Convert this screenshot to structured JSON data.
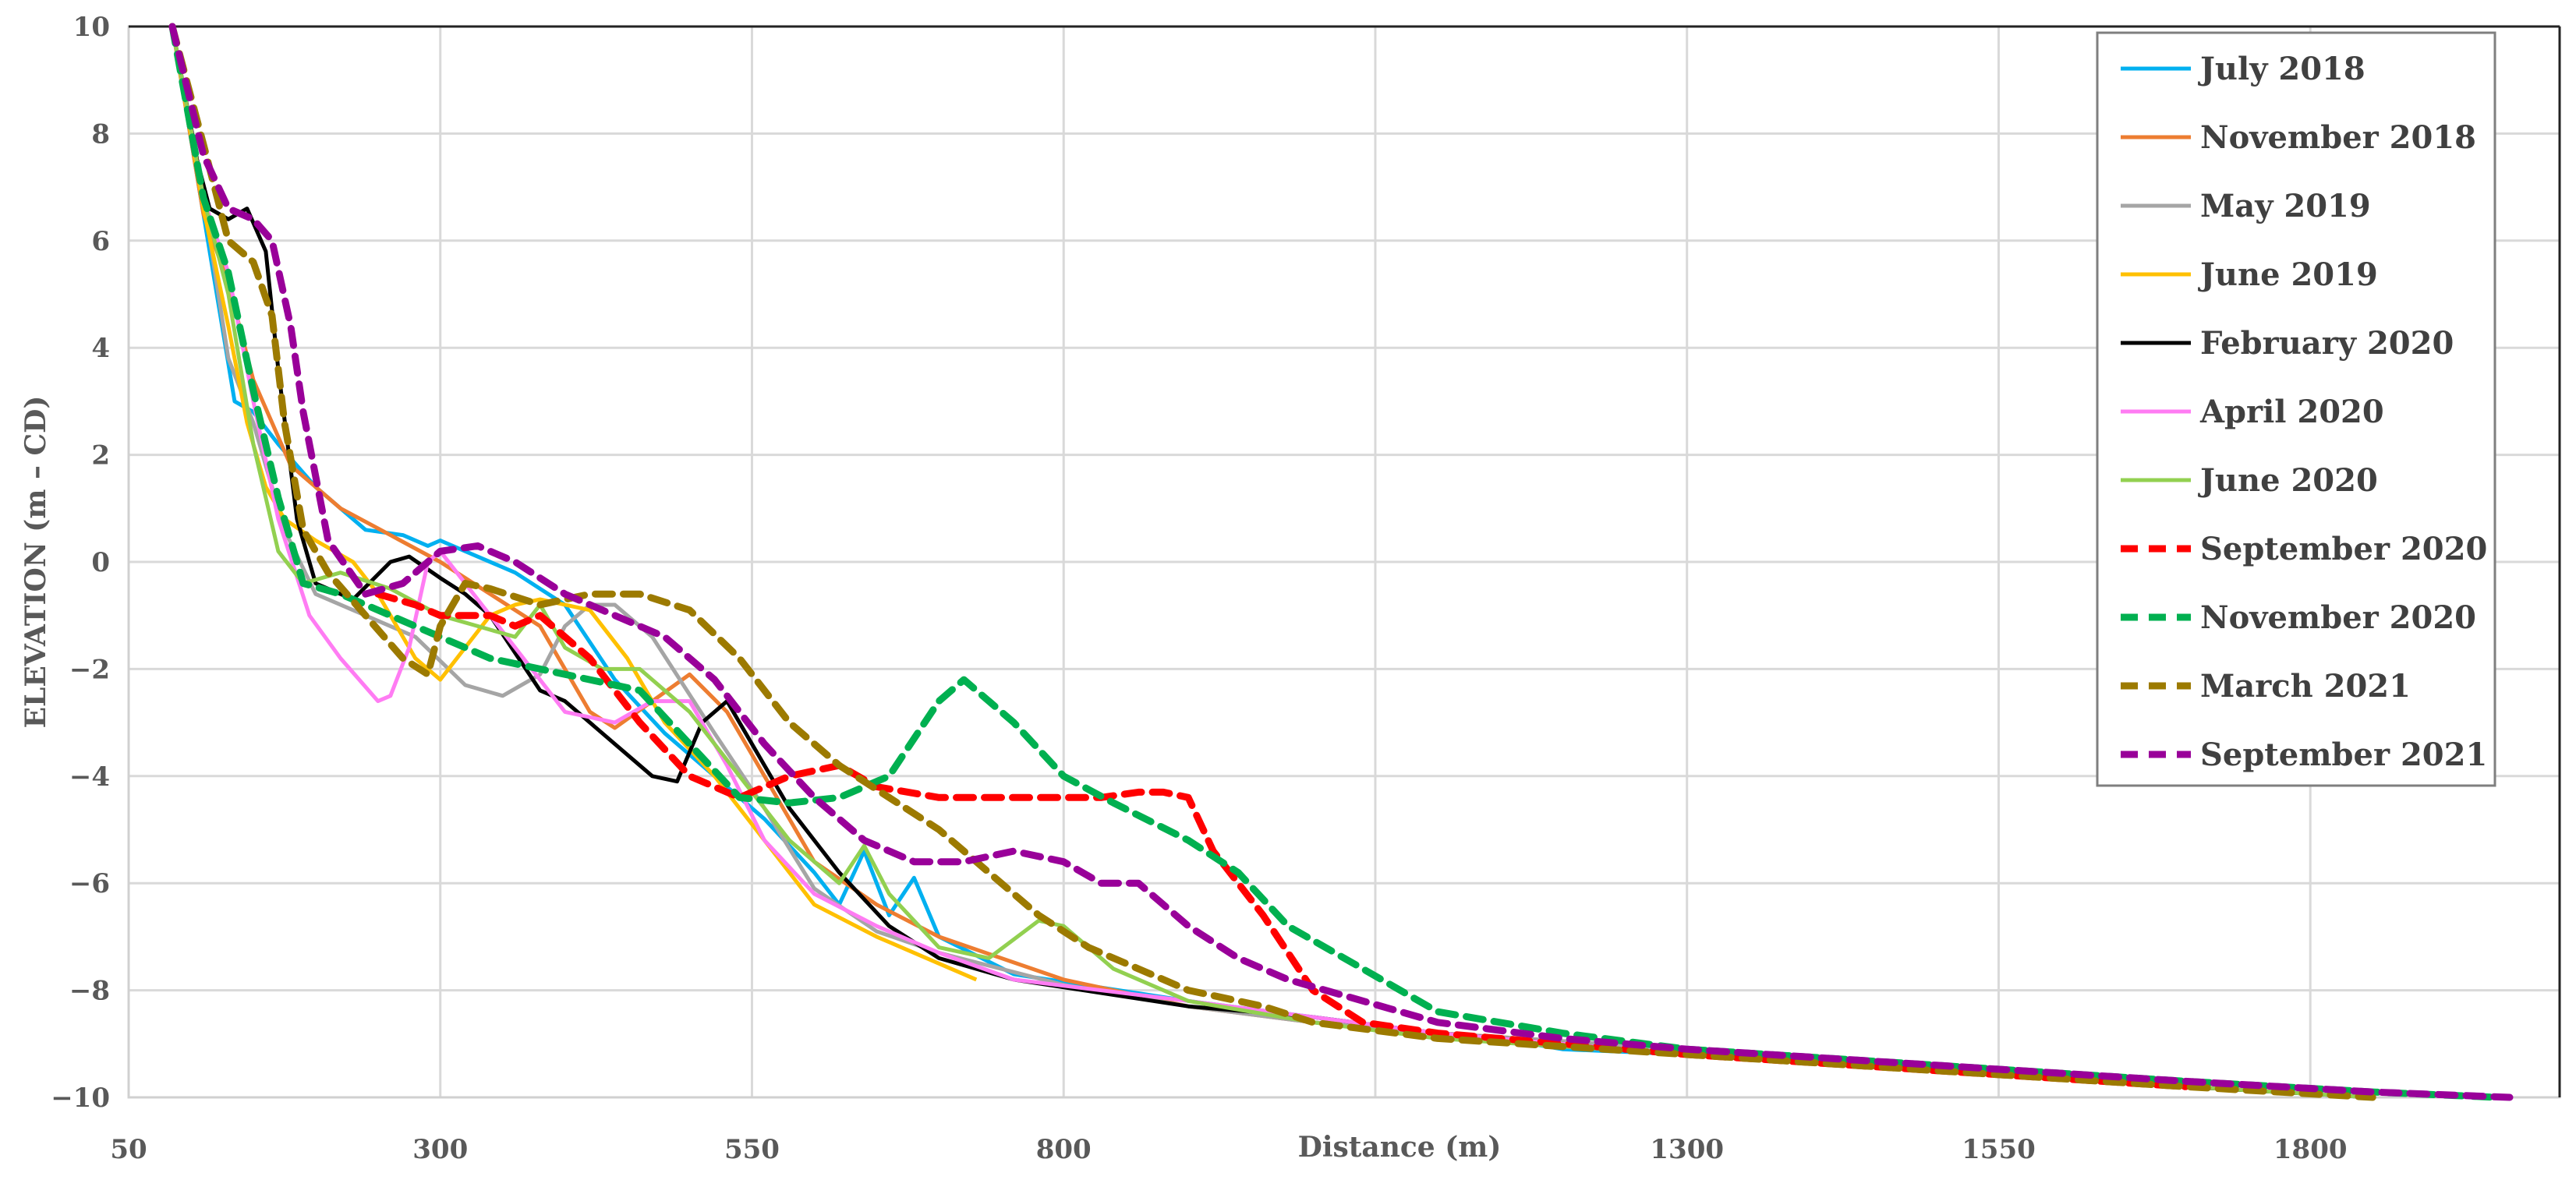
{
  "chart_data": {
    "type": "line",
    "title": "",
    "xlabel": "Distance (m)",
    "ylabel": "ELEVATION (m – CD)",
    "xlim": [
      50,
      2000
    ],
    "ylim": [
      -10,
      10
    ],
    "x_ticks": [
      50,
      300,
      550,
      800,
      1050,
      1300,
      1550,
      1800
    ],
    "x_tick_labels": [
      "50",
      "300",
      "550",
      "800",
      "",
      "1300",
      "1550",
      "1800"
    ],
    "y_ticks": [
      10,
      8,
      6,
      4,
      2,
      0,
      -2,
      -4,
      -6,
      -8,
      -10
    ],
    "y_tick_labels": [
      "10",
      "8",
      "6",
      "4",
      "2",
      "0",
      "−2",
      "−4",
      "−6",
      "−8",
      "−10"
    ],
    "grid": true,
    "legend_position": "upper-right",
    "series": [
      {
        "name": "July 2018",
        "color": "#00B0F0",
        "dash": false,
        "x": [
          85,
          110,
          135,
          150,
          170,
          200,
          240,
          270,
          290,
          300,
          320,
          360,
          400,
          440,
          480,
          520,
          560,
          600,
          620,
          640,
          660,
          680,
          700,
          760,
          900,
          1000,
          1100,
          1150,
          1200,
          1300,
          1500,
          1700,
          1850
        ],
        "y": [
          10,
          6.5,
          3.0,
          2.8,
          2.2,
          1.4,
          0.6,
          0.5,
          0.3,
          0.4,
          0.2,
          -0.2,
          -0.8,
          -2.2,
          -3.2,
          -4.0,
          -4.8,
          -5.8,
          -6.4,
          -5.4,
          -6.6,
          -5.9,
          -7.0,
          -7.7,
          -8.2,
          -8.5,
          -8.8,
          -8.9,
          -9.1,
          -9.2,
          -9.5,
          -9.8,
          -10
        ]
      },
      {
        "name": "November 2018",
        "color": "#ED7D31",
        "dash": false,
        "x": [
          85,
          110,
          130,
          150,
          180,
          220,
          260,
          300,
          340,
          380,
          400,
          420,
          440,
          470,
          500,
          530,
          560,
          600,
          650,
          700,
          800,
          900,
          1000,
          1100,
          1300,
          1500,
          1700,
          1850
        ],
        "y": [
          10,
          6.5,
          5.2,
          3.4,
          1.8,
          1.0,
          0.5,
          0.0,
          -0.6,
          -1.2,
          -2.0,
          -2.8,
          -3.1,
          -2.6,
          -2.1,
          -2.8,
          -4.0,
          -5.6,
          -6.4,
          -7.0,
          -7.8,
          -8.3,
          -8.6,
          -8.8,
          -9.1,
          -9.5,
          -9.8,
          -10
        ]
      },
      {
        "name": "May 2019",
        "color": "#A5A5A5",
        "dash": false,
        "x": [
          85,
          110,
          130,
          150,
          175,
          200,
          240,
          280,
          320,
          350,
          380,
          400,
          420,
          440,
          470,
          520,
          560,
          600,
          650,
          700,
          800,
          900,
          1000,
          1100,
          1300,
          1500,
          1700,
          1850
        ],
        "y": [
          10,
          6.8,
          3.8,
          2.6,
          0.6,
          -0.6,
          -1.0,
          -1.4,
          -2.3,
          -2.5,
          -2.1,
          -1.2,
          -0.8,
          -0.8,
          -1.4,
          -3.2,
          -4.6,
          -6.1,
          -6.9,
          -7.3,
          -7.9,
          -8.3,
          -8.6,
          -8.8,
          -9.1,
          -9.5,
          -9.8,
          -10
        ]
      },
      {
        "name": "June 2019",
        "color": "#FFC000",
        "dash": false,
        "x": [
          85,
          110,
          130,
          145,
          160,
          175,
          200,
          230,
          250,
          280,
          300,
          320,
          340,
          360,
          380,
          420,
          450,
          480,
          520,
          560,
          600,
          650,
          700,
          730
        ],
        "y": [
          10,
          6.6,
          4.4,
          2.6,
          1.4,
          0.8,
          0.4,
          0.0,
          -0.6,
          -1.8,
          -2.2,
          -1.6,
          -1.0,
          -0.8,
          -0.7,
          -0.9,
          -1.8,
          -3.0,
          -4.0,
          -5.2,
          -6.4,
          -7.0,
          -7.5,
          -7.8
        ]
      },
      {
        "name": "February 2020",
        "color": "#000000",
        "dash": false,
        "x": [
          85,
          105,
          115,
          130,
          145,
          160,
          170,
          185,
          200,
          230,
          260,
          275,
          300,
          320,
          340,
          380,
          400,
          440,
          470,
          490,
          510,
          530,
          550,
          580,
          620,
          660,
          700,
          760,
          900,
          1000,
          1100,
          1300,
          1500,
          1700,
          1850
        ],
        "y": [
          10,
          7.5,
          6.6,
          6.4,
          6.6,
          5.8,
          3.6,
          0.8,
          -0.4,
          -0.7,
          0.0,
          0.1,
          -0.3,
          -0.6,
          -1.0,
          -2.4,
          -2.6,
          -3.4,
          -4.0,
          -4.1,
          -3.0,
          -2.6,
          -3.4,
          -4.6,
          -5.8,
          -6.8,
          -7.4,
          -7.8,
          -8.3,
          -8.5,
          -8.8,
          -9.2,
          -9.5,
          -9.8,
          -10
        ]
      },
      {
        "name": "April 2020",
        "color": "#FF7CF3",
        "dash": false,
        "x": [
          85,
          110,
          130,
          150,
          170,
          195,
          220,
          250,
          260,
          275,
          290,
          300,
          320,
          360,
          400,
          440,
          470,
          500,
          530,
          560,
          600,
          650,
          700,
          760,
          900,
          1000,
          1100,
          1300,
          1500,
          1700,
          1850,
          1950
        ],
        "y": [
          10,
          6.8,
          5.4,
          3.0,
          0.8,
          -1.0,
          -1.8,
          -2.6,
          -2.5,
          -1.6,
          0.0,
          0.2,
          -0.4,
          -1.6,
          -2.8,
          -3.0,
          -2.6,
          -2.6,
          -3.8,
          -5.2,
          -6.2,
          -6.8,
          -7.3,
          -7.8,
          -8.2,
          -8.5,
          -8.8,
          -9.2,
          -9.5,
          -9.8,
          -9.9,
          -10
        ]
      },
      {
        "name": "June 2020",
        "color": "#92D050",
        "dash": false,
        "x": [
          85,
          110,
          130,
          150,
          170,
          190,
          220,
          260,
          300,
          330,
          360,
          380,
          400,
          430,
          460,
          500,
          540,
          580,
          620,
          640,
          660,
          700,
          740,
          780,
          800,
          840,
          900,
          1000,
          1100,
          1300,
          1500,
          1700,
          1850
        ],
        "y": [
          10,
          6.8,
          5.0,
          2.2,
          0.2,
          -0.4,
          -0.2,
          -0.5,
          -1.0,
          -1.2,
          -1.4,
          -0.8,
          -1.6,
          -2.0,
          -2.0,
          -2.8,
          -4.0,
          -5.2,
          -6.0,
          -5.3,
          -6.2,
          -7.2,
          -7.4,
          -6.7,
          -6.8,
          -7.6,
          -8.2,
          -8.6,
          -8.9,
          -9.2,
          -9.5,
          -9.8,
          -10
        ]
      },
      {
        "name": "September 2020",
        "color": "#FF0000",
        "dash": true,
        "x": [
          250,
          280,
          300,
          320,
          340,
          360,
          380,
          400,
          420,
          440,
          460,
          500,
          540,
          580,
          620,
          650,
          700,
          760,
          800,
          830,
          860,
          880,
          900,
          920,
          960,
          1000,
          1040,
          1100,
          1300,
          1500,
          1700
        ],
        "y": [
          -0.6,
          -0.8,
          -1.0,
          -1.0,
          -1.0,
          -1.2,
          -1.0,
          -1.4,
          -1.8,
          -2.4,
          -3.0,
          -4.0,
          -4.4,
          -4.0,
          -3.8,
          -4.2,
          -4.4,
          -4.4,
          -4.4,
          -4.4,
          -4.3,
          -4.3,
          -4.4,
          -5.4,
          -6.6,
          -8.0,
          -8.6,
          -8.8,
          -9.2,
          -9.5,
          -9.8
        ]
      },
      {
        "name": "November 2020",
        "color": "#00B050",
        "dash": true,
        "x": [
          85,
          110,
          130,
          150,
          170,
          190,
          220,
          260,
          300,
          340,
          380,
          420,
          460,
          500,
          540,
          580,
          620,
          660,
          700,
          720,
          740,
          760,
          800,
          840,
          900,
          940,
          980,
          1040,
          1100,
          1200,
          1300,
          1500,
          1700,
          1850,
          1950
        ],
        "y": [
          10,
          6.8,
          5.4,
          3.2,
          1.2,
          -0.4,
          -0.6,
          -1.0,
          -1.4,
          -1.8,
          -2.0,
          -2.2,
          -2.4,
          -3.4,
          -4.4,
          -4.5,
          -4.4,
          -4.0,
          -2.6,
          -2.2,
          -2.6,
          -3.0,
          -4.0,
          -4.5,
          -5.2,
          -5.8,
          -6.8,
          -7.6,
          -8.4,
          -8.8,
          -9.1,
          -9.4,
          -9.7,
          -9.9,
          -10
        ]
      },
      {
        "name": "March 2021",
        "color": "#9C7A00",
        "dash": true,
        "x": [
          85,
          110,
          130,
          150,
          165,
          175,
          190,
          210,
          240,
          270,
          290,
          300,
          320,
          340,
          380,
          420,
          460,
          500,
          540,
          580,
          620,
          660,
          700,
          740,
          780,
          820,
          860,
          900,
          960,
          1000,
          1100,
          1300,
          1500,
          1700,
          1850
        ],
        "y": [
          10,
          7.8,
          6.0,
          5.6,
          4.6,
          2.6,
          0.6,
          -0.2,
          -1.0,
          -1.8,
          -2.1,
          -1.2,
          -0.4,
          -0.5,
          -0.8,
          -0.6,
          -0.6,
          -0.9,
          -1.8,
          -3.0,
          -3.8,
          -4.4,
          -5.0,
          -5.8,
          -6.6,
          -7.2,
          -7.6,
          -8.0,
          -8.3,
          -8.6,
          -8.9,
          -9.2,
          -9.5,
          -9.8,
          -10
        ]
      },
      {
        "name": "September 2021",
        "color": "#990099",
        "dash": true,
        "x": [
          85,
          110,
          130,
          150,
          165,
          180,
          190,
          210,
          240,
          270,
          300,
          330,
          360,
          400,
          440,
          480,
          520,
          560,
          600,
          640,
          680,
          720,
          760,
          800,
          830,
          860,
          900,
          940,
          980,
          1040,
          1100,
          1200,
          1300,
          1500,
          1700,
          1850,
          1960
        ],
        "y": [
          10,
          7.6,
          6.6,
          6.4,
          6.0,
          4.4,
          2.8,
          0.4,
          -0.6,
          -0.4,
          0.2,
          0.3,
          0.0,
          -0.6,
          -1.0,
          -1.4,
          -2.2,
          -3.4,
          -4.4,
          -5.2,
          -5.6,
          -5.6,
          -5.4,
          -5.6,
          -6.0,
          -6.0,
          -6.8,
          -7.4,
          -7.8,
          -8.2,
          -8.6,
          -8.9,
          -9.1,
          -9.4,
          -9.7,
          -9.9,
          -10
        ]
      }
    ]
  },
  "legend": {
    "items": [
      "July 2018",
      "November 2018",
      "May 2019",
      "June 2019",
      "February 2020",
      "April 2020",
      "June 2020",
      "September 2020",
      "November 2020",
      "March 2021",
      "September 2021"
    ]
  }
}
